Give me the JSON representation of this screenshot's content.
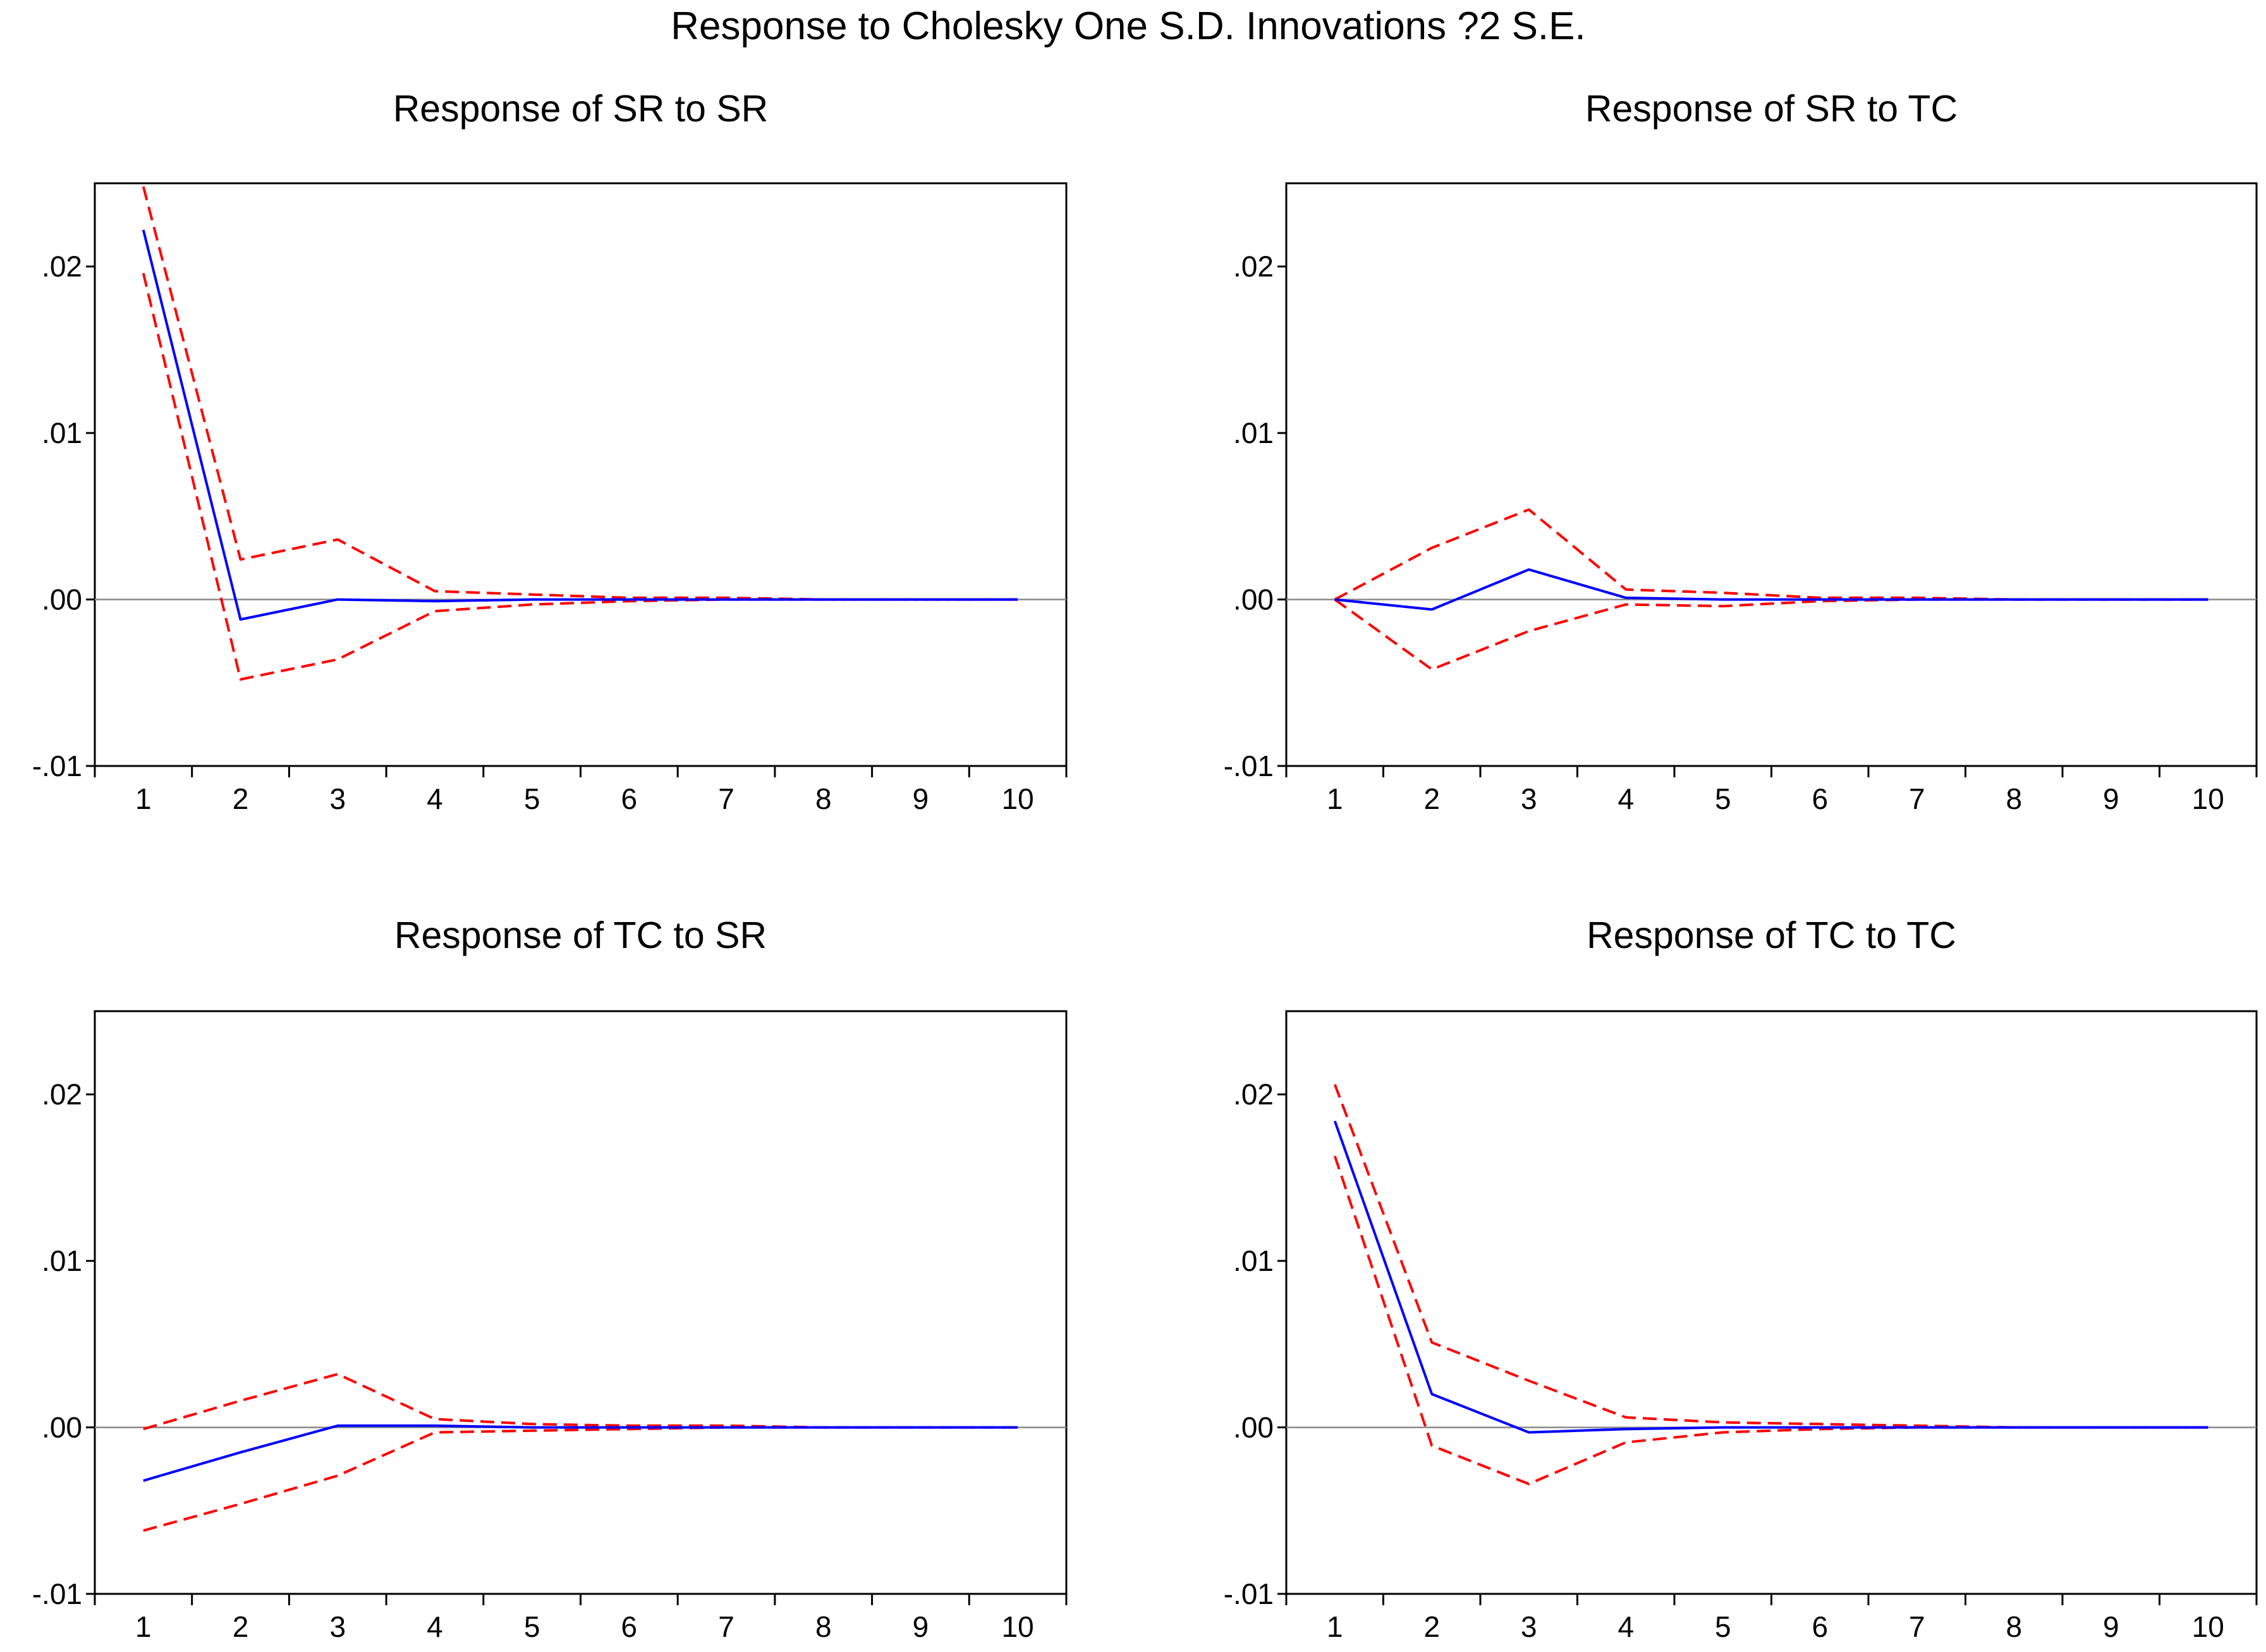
{
  "figure": {
    "title": "Response to Cholesky One S.D. Innovations ?2 S.E.",
    "colors": {
      "response": "#0000ff",
      "band": "#ff0000",
      "zero_line": "#8a8a8a",
      "axes": "#000000"
    }
  },
  "chart_data": [
    {
      "type": "line",
      "title": "Response of SR to SR",
      "x": [
        1,
        2,
        3,
        4,
        5,
        6,
        7,
        8,
        9,
        10
      ],
      "ylim": [
        -0.01,
        0.025
      ],
      "yticks": [
        ".02",
        ".01",
        ".00",
        "-.01"
      ],
      "ytick_values": [
        0.02,
        0.01,
        0.0,
        -0.01
      ],
      "xticks": [
        "1",
        "2",
        "3",
        "4",
        "5",
        "6",
        "7",
        "8",
        "9",
        "10"
      ],
      "series": [
        {
          "name": "Response",
          "values": [
            0.0222,
            -0.0012,
            0.0,
            -0.0001,
            0.0,
            0.0,
            0.0,
            0.0,
            0.0,
            0.0
          ]
        },
        {
          "name": "Upper 2 S.E.",
          "values": [
            0.0248,
            0.0024,
            0.0036,
            0.0005,
            0.0003,
            0.0001,
            0.0001,
            0.0,
            0.0,
            0.0
          ]
        },
        {
          "name": "Lower 2 S.E.",
          "values": [
            0.0196,
            -0.0048,
            -0.0036,
            -0.0007,
            -0.0003,
            -0.0001,
            0.0,
            0.0,
            0.0,
            0.0
          ]
        }
      ]
    },
    {
      "type": "line",
      "title": "Response of SR to TC",
      "x": [
        1,
        2,
        3,
        4,
        5,
        6,
        7,
        8,
        9,
        10
      ],
      "ylim": [
        -0.01,
        0.025
      ],
      "yticks": [
        ".02",
        ".01",
        ".00",
        "-.01"
      ],
      "ytick_values": [
        0.02,
        0.01,
        0.0,
        -0.01
      ],
      "xticks": [
        "1",
        "2",
        "3",
        "4",
        "5",
        "6",
        "7",
        "8",
        "9",
        "10"
      ],
      "series": [
        {
          "name": "Response",
          "values": [
            0.0,
            -0.0006,
            0.0018,
            0.0001,
            0.0,
            0.0,
            0.0,
            0.0,
            0.0,
            0.0
          ]
        },
        {
          "name": "Upper 2 S.E.",
          "values": [
            0.0,
            0.0031,
            0.0054,
            0.0006,
            0.0004,
            0.0001,
            0.0001,
            0.0,
            0.0,
            0.0
          ]
        },
        {
          "name": "Lower 2 S.E.",
          "values": [
            0.0,
            -0.0042,
            -0.0019,
            -0.0003,
            -0.0004,
            -0.0001,
            0.0,
            0.0,
            0.0,
            0.0
          ]
        }
      ]
    },
    {
      "type": "line",
      "title": "Response of TC to SR",
      "x": [
        1,
        2,
        3,
        4,
        5,
        6,
        7,
        8,
        9,
        10
      ],
      "ylim": [
        -0.01,
        0.025
      ],
      "yticks": [
        ".02",
        ".01",
        ".00",
        "-.01"
      ],
      "ytick_values": [
        0.02,
        0.01,
        0.0,
        -0.01
      ],
      "xticks": [
        "1",
        "2",
        "3",
        "4",
        "5",
        "6",
        "7",
        "8",
        "9",
        "10"
      ],
      "series": [
        {
          "name": "Response",
          "values": [
            -0.0032,
            -0.0015,
            0.0001,
            0.0001,
            0.0,
            0.0,
            0.0,
            0.0,
            0.0,
            0.0
          ]
        },
        {
          "name": "Upper 2 S.E.",
          "values": [
            -0.0001,
            0.0016,
            0.0032,
            0.0005,
            0.0002,
            0.0001,
            0.0001,
            0.0,
            0.0,
            0.0
          ]
        },
        {
          "name": "Lower 2 S.E.",
          "values": [
            -0.0062,
            -0.0046,
            -0.0029,
            -0.0003,
            -0.0002,
            -0.0001,
            0.0,
            0.0,
            0.0,
            0.0
          ]
        }
      ]
    },
    {
      "type": "line",
      "title": "Response of TC to TC",
      "x": [
        1,
        2,
        3,
        4,
        5,
        6,
        7,
        8,
        9,
        10
      ],
      "ylim": [
        -0.01,
        0.025
      ],
      "yticks": [
        ".02",
        ".01",
        ".00",
        "-.01"
      ],
      "ytick_values": [
        0.02,
        0.01,
        0.0,
        -0.01
      ],
      "xticks": [
        "1",
        "2",
        "3",
        "4",
        "5",
        "6",
        "7",
        "8",
        "9",
        "10"
      ],
      "series": [
        {
          "name": "Response",
          "values": [
            0.0184,
            0.002,
            -0.0003,
            -0.0001,
            0.0,
            0.0,
            0.0,
            0.0,
            0.0,
            0.0
          ]
        },
        {
          "name": "Upper 2 S.E.",
          "values": [
            0.0206,
            0.0051,
            0.0028,
            0.0006,
            0.0003,
            0.0002,
            0.0001,
            0.0,
            0.0,
            0.0
          ]
        },
        {
          "name": "Lower 2 S.E.",
          "values": [
            0.0163,
            -0.0011,
            -0.0034,
            -0.0009,
            -0.0003,
            -0.0001,
            0.0,
            0.0,
            0.0,
            0.0
          ]
        }
      ]
    }
  ]
}
